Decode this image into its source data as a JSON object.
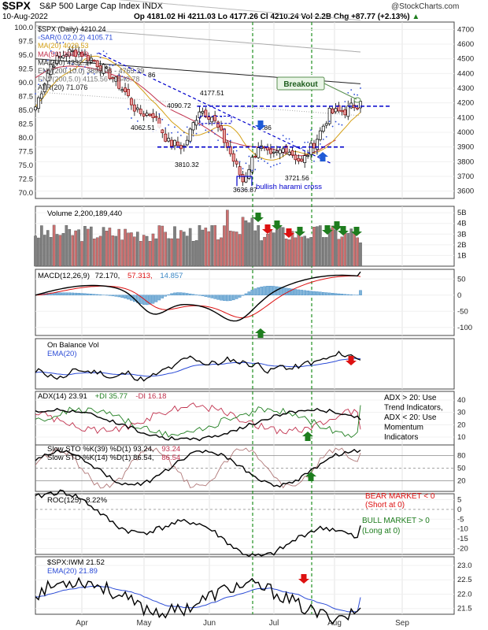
{
  "header": {
    "symbol": "$SPX",
    "name": "S&P 500 Large Cap Index",
    "exchange": "INDX",
    "watermark": "@StockCharts.com",
    "date": "10-Aug-2022",
    "stats": "Op 4181.02  Hi 4211.03  Lo 4177.26  Cl 4210.24  Vol 2.2B  Chg +87.77 (+2.13%)",
    "chg_arrow": "▲"
  },
  "months": [
    "Apr",
    "May",
    "Jun",
    "Jul",
    "Aug",
    "Sep"
  ],
  "colors": {
    "up": "#ffffff",
    "down": "#e8a0a0",
    "downEdge": "#8b0000",
    "vol_up": "#808080",
    "vol_down": "#cc7070",
    "ma20": "#d4a017",
    "ma50": "#c0304c",
    "ma200": "#222222",
    "env": "#777777",
    "sar": "#2b4bd6",
    "blue_line": "#0000cc",
    "green_arrow": "#1e7d1e",
    "red_arrow": "#dd1111",
    "blue_arrow": "#1f5bd6",
    "vline": "#1e8f1e"
  },
  "main": {
    "legend": [
      {
        "text": "$SPX (Daily) 4210.24",
        "color": "#000000"
      },
      {
        "text": "▫SAR(0.02,0.2) 4105.71",
        "color": "#2b4bd6"
      },
      {
        "text": "MA(20) 4029.53",
        "color": "#d4a017"
      },
      {
        "text": "MA(50) 3947.59",
        "color": "#c0304c"
      },
      {
        "text": "MA(200) 4332.17",
        "color": "#222222"
      },
      {
        "text": "ENV(200,10.0) 3898.96 - 4765.39",
        "color": "#555555"
      },
      {
        "text": "ENV(200,5.0) 4115.56 - 4548.78",
        "color": "#777777"
      },
      {
        "text": "ATR(20) 71.076",
        "color": "#222222"
      }
    ],
    "left_axis": [
      "100.0",
      "97.5",
      "95.0",
      "92.5",
      "90.0",
      "87.5",
      "85.0",
      "82.5",
      "80.0",
      "77.5",
      "75.0",
      "72.5",
      "70.0"
    ],
    "right_axis": [
      "4700",
      "4600",
      "4500",
      "4400",
      "4300",
      "4200",
      "4100",
      "4000",
      "3900",
      "3800",
      "3700",
      "3600"
    ],
    "price_labels": [
      "4177.51",
      "4090.72",
      "4062.51",
      "3810.32",
      "3636.87",
      "3721.56",
      ".86",
      "86"
    ],
    "breakout_label": "Breakout",
    "harami_label": "bullish harami cross"
  },
  "volume": {
    "legend": "Volume 2,200,189,440",
    "axis": [
      "5B",
      "4B",
      "3B",
      "2B",
      "1B"
    ]
  },
  "macd": {
    "legend": [
      {
        "text": "MACD(12,26,9)",
        "color": "#000000"
      },
      {
        "text": "72.170,",
        "color": "#000000"
      },
      {
        "text": "57.313,",
        "color": "#dd1111"
      },
      {
        "text": "14.857",
        "color": "#3a86c4"
      }
    ],
    "axis": [
      "50",
      "0",
      "-50",
      "-100"
    ]
  },
  "obv": {
    "legend": "On Balance Vol",
    "ema_legend": "EMA(20)"
  },
  "adx": {
    "legend": [
      {
        "text": "ADX(14) 23.91",
        "color": "#000000"
      },
      {
        "text": "+DI 35.77",
        "color": "#1e7d1e"
      },
      {
        "text": "-DI 16.18",
        "color": "#c0304c"
      }
    ],
    "note": [
      "ADX > 20: Use",
      "Trend Indicators,",
      "ADX < 20: Use",
      "Momentum",
      "Indicators"
    ],
    "axis": [
      "40",
      "30",
      "20",
      "10"
    ]
  },
  "sto": {
    "legend1": [
      {
        "text": "Slow STO %K(39) %D(1) 93.24,",
        "color": "#000000"
      },
      {
        "text": "93.24",
        "color": "#c0304c"
      }
    ],
    "legend2": [
      {
        "text": "Slow STO %K(14) %D(1) 86.54,",
        "color": "#000000"
      },
      {
        "text": "86.54",
        "color": "#c0304c"
      }
    ],
    "axis": [
      "80",
      "50",
      "20"
    ]
  },
  "roc": {
    "legend": "ROC(125) -8.22%",
    "bear": [
      "BEAR MARKET < 0",
      "(Short at 0)"
    ],
    "bull": [
      "BULL MARKET > 0",
      "(Long at 0)"
    ],
    "axis": [
      "5",
      "0",
      "-5",
      "-10",
      "-15",
      "-20"
    ]
  },
  "ratio": {
    "legend": "$SPX:IWM 21.52",
    "ema_legend": "EMA(20) 21.89",
    "axis": [
      "23.0",
      "22.5",
      "22.0",
      "21.5"
    ]
  },
  "chart_data": {
    "type": "line",
    "title": "$SPX S&P 500 Large Cap Index INDX",
    "date_range": [
      "2022-03-14",
      "2022-08-10"
    ],
    "price_series": {
      "name": "$SPX (Daily)",
      "x": [
        "2022-03-14",
        "2022-03-18",
        "2022-03-25",
        "2022-04-01",
        "2022-04-08",
        "2022-04-14",
        "2022-04-22",
        "2022-04-29",
        "2022-05-06",
        "2022-05-12",
        "2022-05-20",
        "2022-05-27",
        "2022-06-03",
        "2022-06-10",
        "2022-06-16",
        "2022-06-24",
        "2022-07-01",
        "2022-07-08",
        "2022-07-14",
        "2022-07-22",
        "2022-07-29",
        "2022-08-05",
        "2022-08-10"
      ],
      "values": [
        4173,
        4463,
        4543,
        4546,
        4488,
        4393,
        4272,
        4132,
        4123,
        3930,
        3901,
        4158,
        4108,
        3901,
        3667,
        3911,
        3825,
        3899,
        3790,
        3962,
        4130,
        4145,
        4210
      ]
    },
    "ma50_endpoint": 3947.59,
    "ma200_endpoint": 4332.17,
    "support_lines": [
      4177.51,
      3900
    ],
    "annotated_levels": [
      4177.51,
      4090.72,
      4062.51,
      3810.32,
      3636.87,
      3721.56
    ],
    "ylim_right": [
      3550,
      4750
    ],
    "ylim_left": [
      69,
      101
    ],
    "close": 4210.24,
    "volume_last": 2200189440,
    "macd_last": [
      72.17,
      57.313,
      14.857
    ],
    "adx_last": [
      23.91,
      35.77,
      16.18
    ],
    "sto39_last": [
      93.24,
      93.24
    ],
    "sto14_last": [
      86.54,
      86.54
    ],
    "roc125_last": -8.22,
    "spx_iwm_last": 21.52,
    "spx_iwm_ema20": 21.89
  }
}
